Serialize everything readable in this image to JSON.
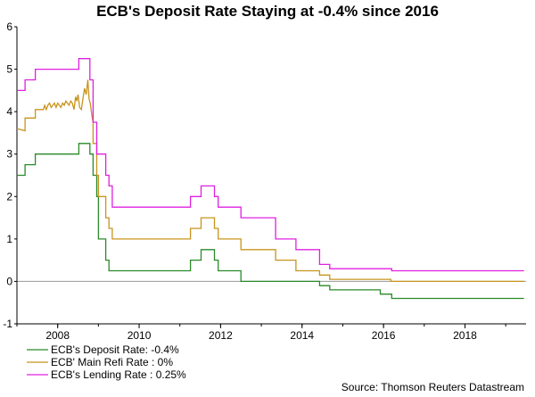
{
  "chart_data": {
    "type": "line",
    "title": "ECB's Deposit Rate Staying at -0.4% since 2016",
    "xlabel": "",
    "ylabel": "",
    "xlim": [
      2007.0,
      2019.5
    ],
    "ylim": [
      -1,
      6
    ],
    "y_ticks": [
      -1,
      0,
      1,
      2,
      3,
      4,
      5,
      6
    ],
    "x_ticks": [
      2008,
      2010,
      2012,
      2014,
      2016,
      2018
    ],
    "legend_position": "bottom-left",
    "source": "Source: Thomson Reuters Datastream",
    "series": [
      {
        "name": "ECB's Deposit Rate: -0.4%",
        "color": "#2a8a2a",
        "x": [
          2007.0,
          2007.2,
          2007.2,
          2007.45,
          2007.45,
          2008.52,
          2008.52,
          2008.79,
          2008.79,
          2008.87,
          2008.87,
          2008.96,
          2008.96,
          2009.0,
          2009.0,
          2009.18,
          2009.18,
          2009.26,
          2009.26,
          2009.34,
          2009.34,
          2011.26,
          2011.26,
          2011.52,
          2011.52,
          2011.85,
          2011.85,
          2011.94,
          2011.94,
          2012.5,
          2012.5,
          2013.85,
          2013.85,
          2014.43,
          2014.43,
          2014.68,
          2014.68,
          2015.92,
          2015.92,
          2016.2,
          2016.2,
          2019.45
        ],
        "values": [
          2.5,
          2.5,
          2.75,
          2.75,
          3.0,
          3.0,
          3.25,
          3.25,
          3.0,
          3.0,
          2.5,
          2.5,
          2.0,
          2.0,
          1.0,
          1.0,
          0.5,
          0.5,
          0.25,
          0.25,
          0.25,
          0.25,
          0.5,
          0.5,
          0.75,
          0.75,
          0.5,
          0.5,
          0.25,
          0.25,
          0.0,
          0.0,
          0.0,
          0.0,
          -0.1,
          -0.1,
          -0.2,
          -0.2,
          -0.3,
          -0.3,
          -0.4,
          -0.4
        ]
      },
      {
        "name": "ECB' Main Refi Rate : 0%",
        "color": "#c8941e",
        "x": [
          2007.0,
          2007.2,
          2007.2,
          2007.45,
          2007.45,
          2007.65,
          2007.68,
          2007.72,
          2007.76,
          2007.8,
          2007.84,
          2007.88,
          2007.92,
          2007.96,
          2008.0,
          2008.04,
          2008.08,
          2008.12,
          2008.16,
          2008.2,
          2008.24,
          2008.28,
          2008.32,
          2008.36,
          2008.4,
          2008.44,
          2008.47,
          2008.5,
          2008.54,
          2008.58,
          2008.62,
          2008.66,
          2008.7,
          2008.74,
          2008.77,
          2008.8,
          2008.84,
          2008.87,
          2008.87,
          2008.96,
          2008.96,
          2009.0,
          2009.0,
          2009.18,
          2009.18,
          2009.26,
          2009.26,
          2009.34,
          2009.34,
          2011.26,
          2011.26,
          2011.52,
          2011.52,
          2011.85,
          2011.85,
          2011.94,
          2011.94,
          2012.5,
          2012.5,
          2013.35,
          2013.35,
          2013.85,
          2013.85,
          2014.43,
          2014.43,
          2014.68,
          2014.68,
          2016.18,
          2016.18,
          2019.45
        ],
        "values": [
          3.6,
          3.55,
          3.85,
          3.85,
          4.05,
          4.05,
          4.15,
          4.05,
          4.15,
          4.2,
          4.1,
          4.15,
          4.2,
          4.1,
          4.2,
          4.15,
          4.1,
          4.2,
          4.15,
          4.25,
          4.2,
          4.15,
          4.25,
          4.2,
          4.05,
          4.35,
          4.25,
          4.4,
          4.1,
          4.05,
          4.3,
          4.55,
          4.4,
          4.75,
          4.3,
          4.2,
          3.9,
          3.75,
          3.25,
          3.25,
          2.5,
          2.5,
          2.0,
          2.0,
          1.5,
          1.5,
          1.25,
          1.25,
          1.0,
          1.0,
          1.25,
          1.25,
          1.5,
          1.5,
          1.25,
          1.25,
          1.0,
          1.0,
          0.75,
          0.75,
          0.5,
          0.5,
          0.25,
          0.25,
          0.15,
          0.15,
          0.05,
          0.05,
          0.0,
          0.0
        ]
      },
      {
        "name": "ECB's Lending Rate : 0.25%",
        "color": "#e020e0",
        "x": [
          2007.0,
          2007.2,
          2007.2,
          2007.45,
          2007.45,
          2008.52,
          2008.52,
          2008.79,
          2008.79,
          2008.87,
          2008.87,
          2008.96,
          2008.96,
          2009.0,
          2009.0,
          2009.18,
          2009.18,
          2009.26,
          2009.26,
          2009.34,
          2009.34,
          2011.26,
          2011.26,
          2011.52,
          2011.52,
          2011.85,
          2011.85,
          2011.94,
          2011.94,
          2012.5,
          2012.5,
          2013.35,
          2013.35,
          2013.85,
          2013.85,
          2014.43,
          2014.43,
          2014.68,
          2014.68,
          2015.92,
          2015.92,
          2016.2,
          2016.2,
          2019.45
        ],
        "values": [
          4.5,
          4.5,
          4.75,
          4.75,
          5.0,
          5.0,
          5.25,
          5.25,
          4.75,
          4.75,
          3.75,
          3.75,
          3.0,
          3.0,
          3.0,
          3.0,
          2.5,
          2.5,
          2.25,
          2.25,
          1.75,
          1.75,
          2.0,
          2.0,
          2.25,
          2.25,
          2.0,
          2.0,
          1.75,
          1.75,
          1.5,
          1.5,
          1.0,
          1.0,
          0.75,
          0.75,
          0.4,
          0.4,
          0.3,
          0.3,
          0.3,
          0.3,
          0.25,
          0.25
        ]
      }
    ]
  }
}
